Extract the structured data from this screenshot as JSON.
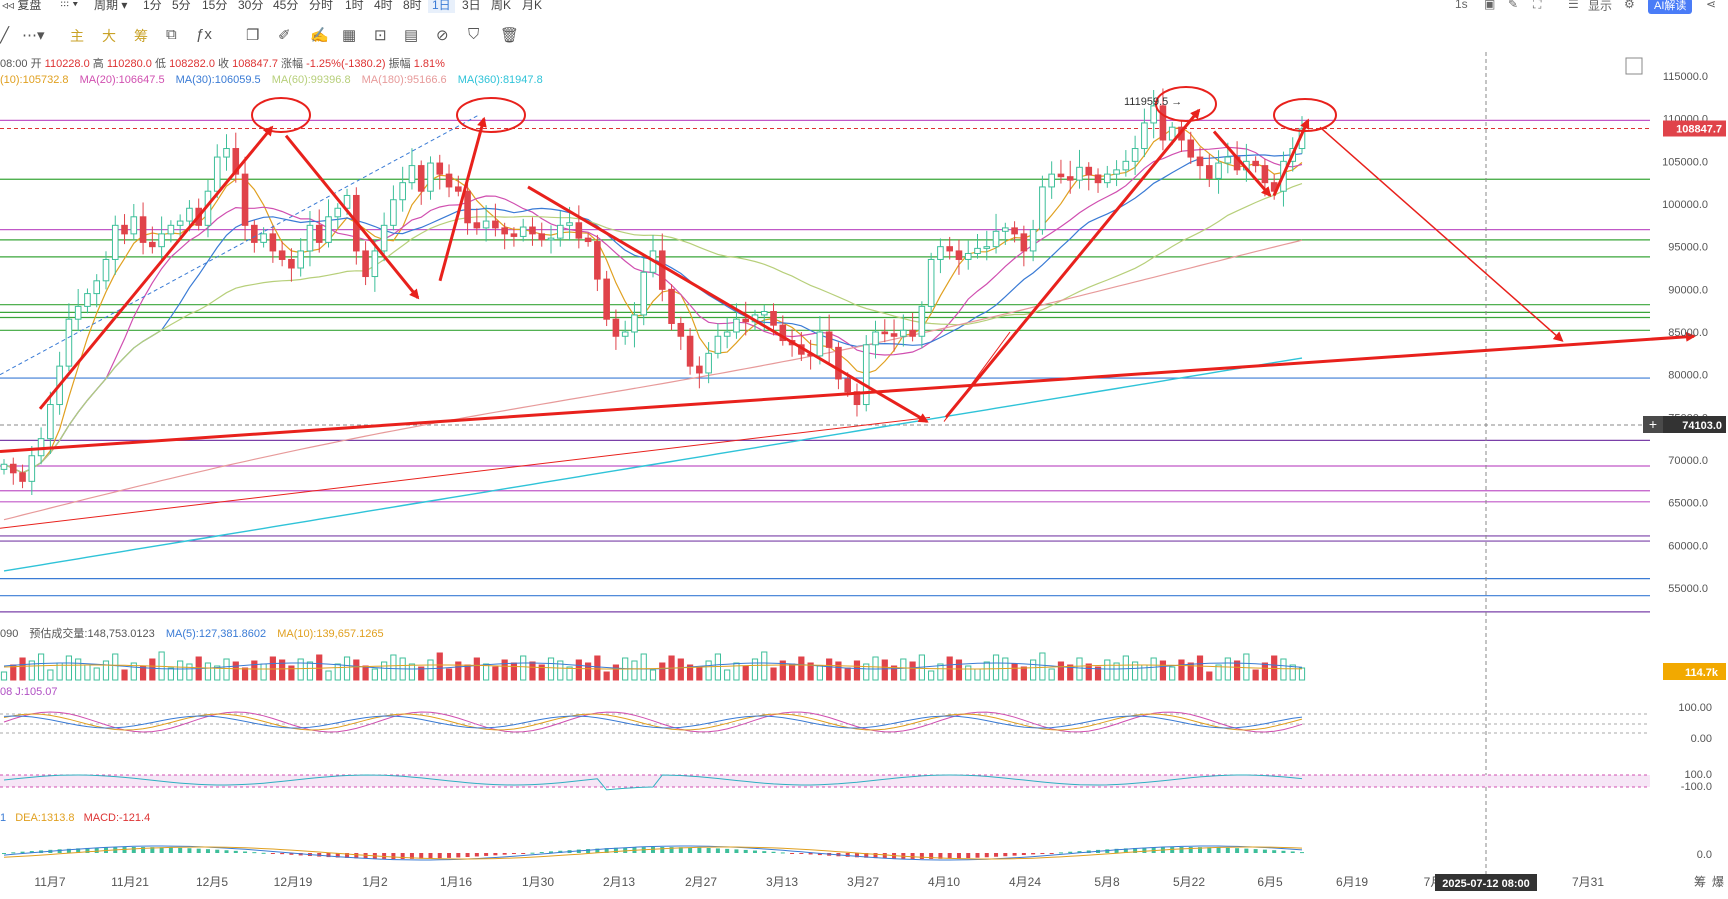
{
  "toolbar": {
    "items": [
      "复盘",
      "周期",
      "1分",
      "5分",
      "15分",
      "30分",
      "45分",
      "分时",
      "1时",
      "4时",
      "8时",
      "1日",
      "3日",
      "周K",
      "月K"
    ],
    "active": "1日",
    "right": {
      "interval": "1s",
      "display": "显示",
      "ai": "AI解读"
    }
  },
  "drawbar": {
    "labels": [
      "主",
      "大",
      "筹"
    ]
  },
  "ohlc": {
    "time": "08:00",
    "open_label": "开",
    "open": "110228.0",
    "high_label": "高",
    "high": "110280.0",
    "low_label": "低",
    "low": "108282.0",
    "close_label": "收",
    "close": "108847.7",
    "change_label": "涨幅",
    "change": "-1.25%(-1380.2)",
    "amp_label": "振幅",
    "amp": "1.81%"
  },
  "ma_legend": [
    {
      "text": "(10):105732.8",
      "color": "#e0a020"
    },
    {
      "text": "MA(20):106647.5",
      "color": "#d04fb0"
    },
    {
      "text": "MA(30):106059.5",
      "color": "#3a7bd5"
    },
    {
      "text": "MA(60):99396.8",
      "color": "#b7cf7a"
    },
    {
      "text": "MA(180):95166.6",
      "color": "#e79a9a"
    },
    {
      "text": "MA(360):81947.8",
      "color": "#2fc3d8"
    }
  ],
  "volume_legend": [
    {
      "text": "090",
      "color": "#555"
    },
    {
      "text": "预估成交量:148,753.0123",
      "color": "#555"
    },
    {
      "text": "MA(5):127,381.8602",
      "color": "#3a7bd5"
    },
    {
      "text": "MA(10):139,657.1265",
      "color": "#e0a020"
    }
  ],
  "kdj_legend": {
    "text": "08  J:105.07"
  },
  "macd_legend": [
    {
      "text": "1",
      "color": "#3a7bd5"
    },
    {
      "text": "DEA:1313.8",
      "color": "#e0a020"
    },
    {
      "text": "MACD:-121.4",
      "color": "#d33"
    }
  ],
  "price_labels": {
    "current": "108847.7",
    "crosshair": "74103.0",
    "volume": "114.7k",
    "crosshair_date": "2025-07-12 08:00",
    "peak_annotation": "111959.5 →"
  },
  "chart_data": {
    "type": "candlestick",
    "symbol_note": "daily",
    "y_ticks": [
      115000,
      110000,
      105000,
      100000,
      95000,
      90000,
      85000,
      80000,
      75000,
      70000,
      65000,
      60000,
      55000
    ],
    "ylim": [
      50000,
      117000
    ],
    "x_ticks": [
      "11月7",
      "11月21",
      "12月5",
      "12月19",
      "1月2",
      "1月16",
      "1月30",
      "2月13",
      "2月27",
      "3月13",
      "3月27",
      "4月10",
      "4月24",
      "5月8",
      "5月22",
      "6月5",
      "6月19",
      "7月",
      "7月31",
      "筹",
      "爆"
    ],
    "kdj_ticks": [
      "100.00",
      "0.00"
    ],
    "cci_ticks": [
      "100.0",
      "-100.0"
    ],
    "macd_ticks": [
      "0.0"
    ],
    "close_series": [
      69500,
      68500,
      67500,
      70500,
      72500,
      76500,
      81000,
      86500,
      88000,
      89500,
      91000,
      93500,
      97500,
      96500,
      98500,
      95500,
      95000,
      96500,
      97500,
      98000,
      99500,
      97500,
      101500,
      105500,
      106500,
      103500,
      97500,
      95500,
      96500,
      94500,
      93500,
      92500,
      94500,
      97500,
      95500,
      98500,
      99500,
      101000,
      94500,
      91500,
      94500,
      97500,
      100500,
      102500,
      104500,
      101500,
      104800,
      103500,
      102000,
      101500,
      97800,
      97200,
      98000,
      97200,
      96500,
      96200,
      97300,
      96500,
      95800,
      96000,
      97500,
      97800,
      96000,
      95600,
      91200,
      86500,
      84500,
      85000,
      87000,
      92000,
      94500,
      90000,
      86000,
      84500,
      81000,
      80200,
      82500,
      84500,
      85000,
      86500,
      86200,
      87000,
      87400,
      85800,
      84000,
      83500,
      82400,
      82200,
      85000,
      83200,
      79500,
      78000,
      76500,
      83500,
      85000,
      84800,
      84500,
      85200,
      84500,
      88000,
      93500,
      95000,
      94500,
      93500,
      94200,
      94800,
      95000,
      96800,
      97200,
      96500,
      94500,
      97000,
      102000,
      103500,
      103200,
      102800,
      104300,
      103400,
      102500,
      103500,
      104000,
      105000,
      106500,
      109500,
      111500,
      107500,
      109000,
      107500,
      105500,
      104500,
      103000,
      104800,
      105500,
      104000,
      105000,
      104500,
      102500,
      101500,
      105000,
      106500,
      108800
    ],
    "ma_lines": [
      {
        "name": "MA10",
        "value": 105732.8
      },
      {
        "name": "MA20",
        "value": 106647.5
      },
      {
        "name": "MA30",
        "value": 106059.5
      },
      {
        "name": "MA60",
        "value": 99396.8
      },
      {
        "name": "MA180",
        "value": 95166.6
      },
      {
        "name": "MA360",
        "value": 81947.8
      }
    ],
    "horizontal_levels": [
      {
        "value": 109800,
        "color": "#c158c8"
      },
      {
        "value": 102900,
        "color": "#3aa63a"
      },
      {
        "value": 97000,
        "color": "#c158c8"
      },
      {
        "value": 95800,
        "color": "#3aa63a"
      },
      {
        "value": 93800,
        "color": "#3aa63a"
      },
      {
        "value": 88200,
        "color": "#3aa63a"
      },
      {
        "value": 87300,
        "color": "#3aa63a"
      },
      {
        "value": 86700,
        "color": "#3aa63a"
      },
      {
        "value": 85200,
        "color": "#3aa63a"
      },
      {
        "value": 79600,
        "color": "#3a7bd5"
      },
      {
        "value": 72300,
        "color": "#7a40a8"
      },
      {
        "value": 69300,
        "color": "#c158c8"
      },
      {
        "value": 66400,
        "color": "#c158c8"
      },
      {
        "value": 65100,
        "color": "#c158c8"
      },
      {
        "value": 61100,
        "color": "#7a40a8"
      },
      {
        "value": 60500,
        "color": "#7a40a8"
      },
      {
        "value": 56100,
        "color": "#3a7bd5"
      },
      {
        "value": 54100,
        "color": "#3a7bd5"
      },
      {
        "value": 52200,
        "color": "#7a40a8"
      }
    ]
  }
}
